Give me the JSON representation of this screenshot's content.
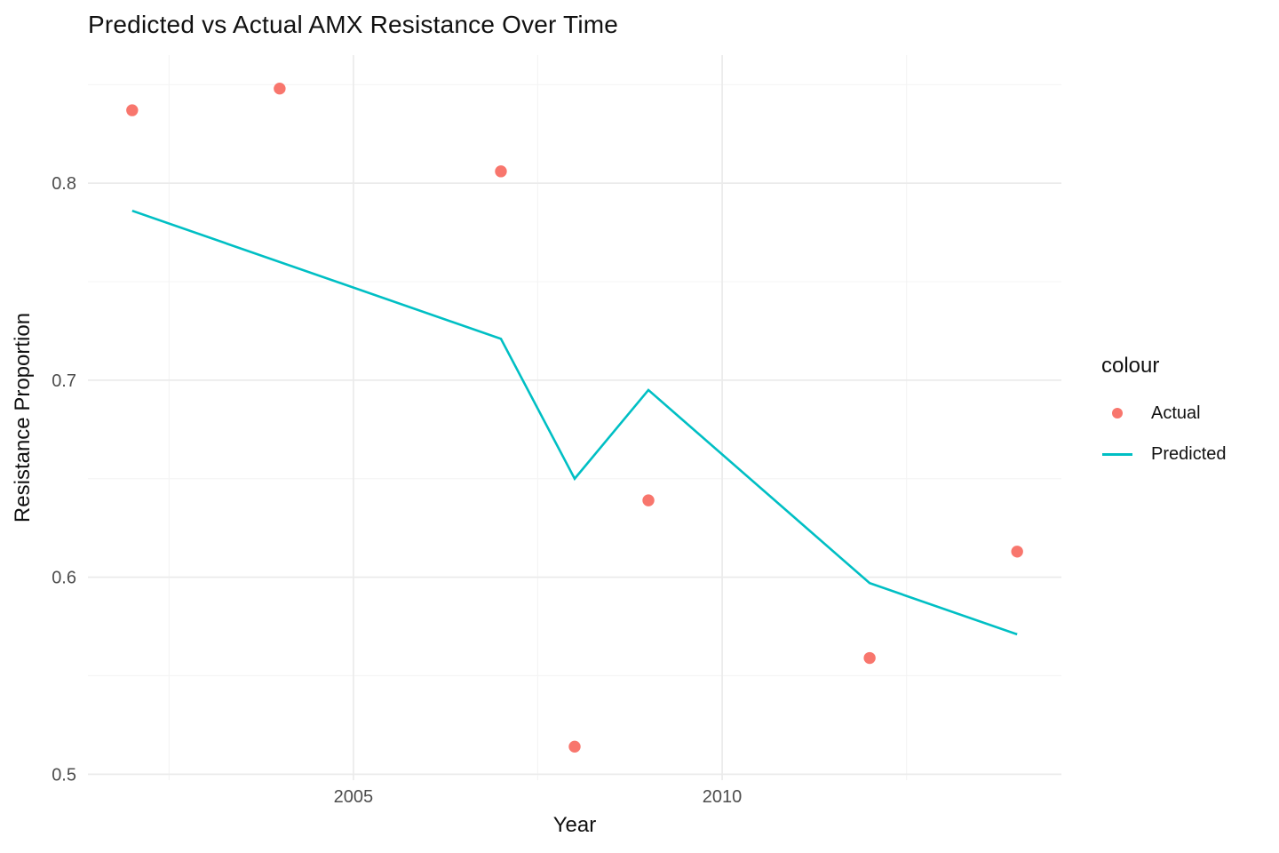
{
  "title": "Predicted vs Actual AMX Resistance Over Time",
  "chart_data": {
    "type": "line",
    "title": "Predicted vs Actual AMX Resistance Over Time",
    "xlabel": "Year",
    "ylabel": "Resistance Proportion",
    "xlim": [
      2001.4,
      2014.6
    ],
    "ylim": [
      0.497,
      0.865
    ],
    "x_tick_values": [
      2005,
      2010
    ],
    "x_tick_labels": [
      "2005",
      "2010"
    ],
    "x_minor_ticks": [
      2002.5,
      2007.5,
      2012.5
    ],
    "y_tick_values": [
      0.5,
      0.6,
      0.7,
      0.8
    ],
    "y_tick_labels": [
      "0.5",
      "0.6",
      "0.7",
      "0.8"
    ],
    "y_minor_ticks": [
      0.55,
      0.65,
      0.75,
      0.85
    ],
    "grid": true,
    "legend_position": "right",
    "legend_title": "colour",
    "series": [
      {
        "name": "Actual",
        "type": "scatter",
        "color": "#F8766D",
        "x": [
          2002,
          2004,
          2007,
          2008,
          2009,
          2012,
          2014
        ],
        "y": [
          0.837,
          0.848,
          0.806,
          0.514,
          0.639,
          0.559,
          0.613
        ]
      },
      {
        "name": "Predicted",
        "type": "line",
        "color": "#00BFC4",
        "x": [
          2002,
          2007,
          2008,
          2009,
          2012,
          2014
        ],
        "y": [
          0.786,
          0.721,
          0.65,
          0.695,
          0.597,
          0.571
        ]
      }
    ]
  },
  "colors": {
    "actual": "#F8766D",
    "predicted": "#00BFC4",
    "grid_major": "#EBEBEB",
    "grid_minor": "#F4F4F4",
    "tick_text": "#4D4D4D"
  },
  "legend": {
    "title": "colour",
    "items": [
      {
        "label": "Actual",
        "swatch": "point"
      },
      {
        "label": "Predicted",
        "swatch": "line"
      }
    ]
  }
}
